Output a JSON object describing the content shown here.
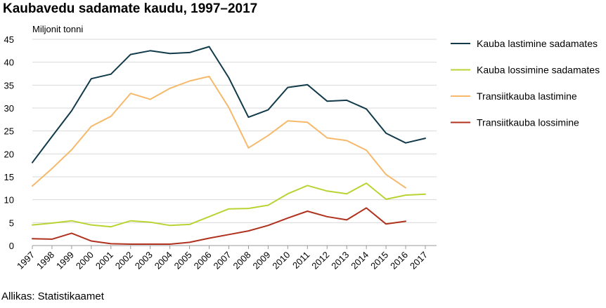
{
  "title": "Kaubavedu sadamate kaudu, 1997–2017",
  "source": "Allikas: Statistikaamet",
  "chart_data": {
    "type": "line",
    "ylabel": "Miljonit tonni",
    "ylim": [
      0,
      45
    ],
    "yticks": [
      0,
      5,
      10,
      15,
      20,
      25,
      30,
      35,
      40,
      45
    ],
    "grid": true,
    "legend_position": "right",
    "x": [
      "1997",
      "1998",
      "1999",
      "2000",
      "2001",
      "2002",
      "2003",
      "2004",
      "2005",
      "2006",
      "2007",
      "2008",
      "2009",
      "2010",
      "2011",
      "2012",
      "2013",
      "2014",
      "2015",
      "2016",
      "2017"
    ],
    "series": [
      {
        "name": "Kauba lastimine sadamates",
        "color": "#113a4a",
        "values": [
          18.1,
          23.8,
          29.4,
          36.4,
          37.4,
          41.7,
          42.5,
          41.9,
          42.1,
          43.4,
          36.6,
          28.0,
          29.6,
          34.5,
          35.1,
          31.5,
          31.7,
          29.8,
          24.5,
          22.4,
          23.4
        ]
      },
      {
        "name": "Kauba lossimine sadamates",
        "color": "#b8d433",
        "values": [
          4.5,
          4.9,
          5.4,
          4.5,
          4.1,
          5.4,
          5.1,
          4.4,
          4.6,
          6.3,
          8.0,
          8.1,
          8.8,
          11.3,
          13.1,
          11.9,
          11.3,
          13.6,
          10.1,
          11.0,
          11.2
        ]
      },
      {
        "name": "Transiitkauba lastimine",
        "color": "#f6b96b",
        "values": [
          13.0,
          16.8,
          20.9,
          26.0,
          28.2,
          33.2,
          31.9,
          34.3,
          35.9,
          36.9,
          30.1,
          21.3,
          24.0,
          27.2,
          26.9,
          23.5,
          22.9,
          20.8,
          15.5,
          12.6,
          null
        ]
      },
      {
        "name": "Transiitkauba lossimine",
        "color": "#b0311e",
        "values": [
          1.5,
          1.4,
          2.7,
          1.0,
          0.4,
          0.3,
          0.3,
          0.3,
          0.7,
          1.6,
          2.4,
          3.2,
          4.4,
          6.0,
          7.5,
          6.3,
          5.6,
          8.2,
          4.7,
          5.3,
          null
        ]
      }
    ]
  }
}
